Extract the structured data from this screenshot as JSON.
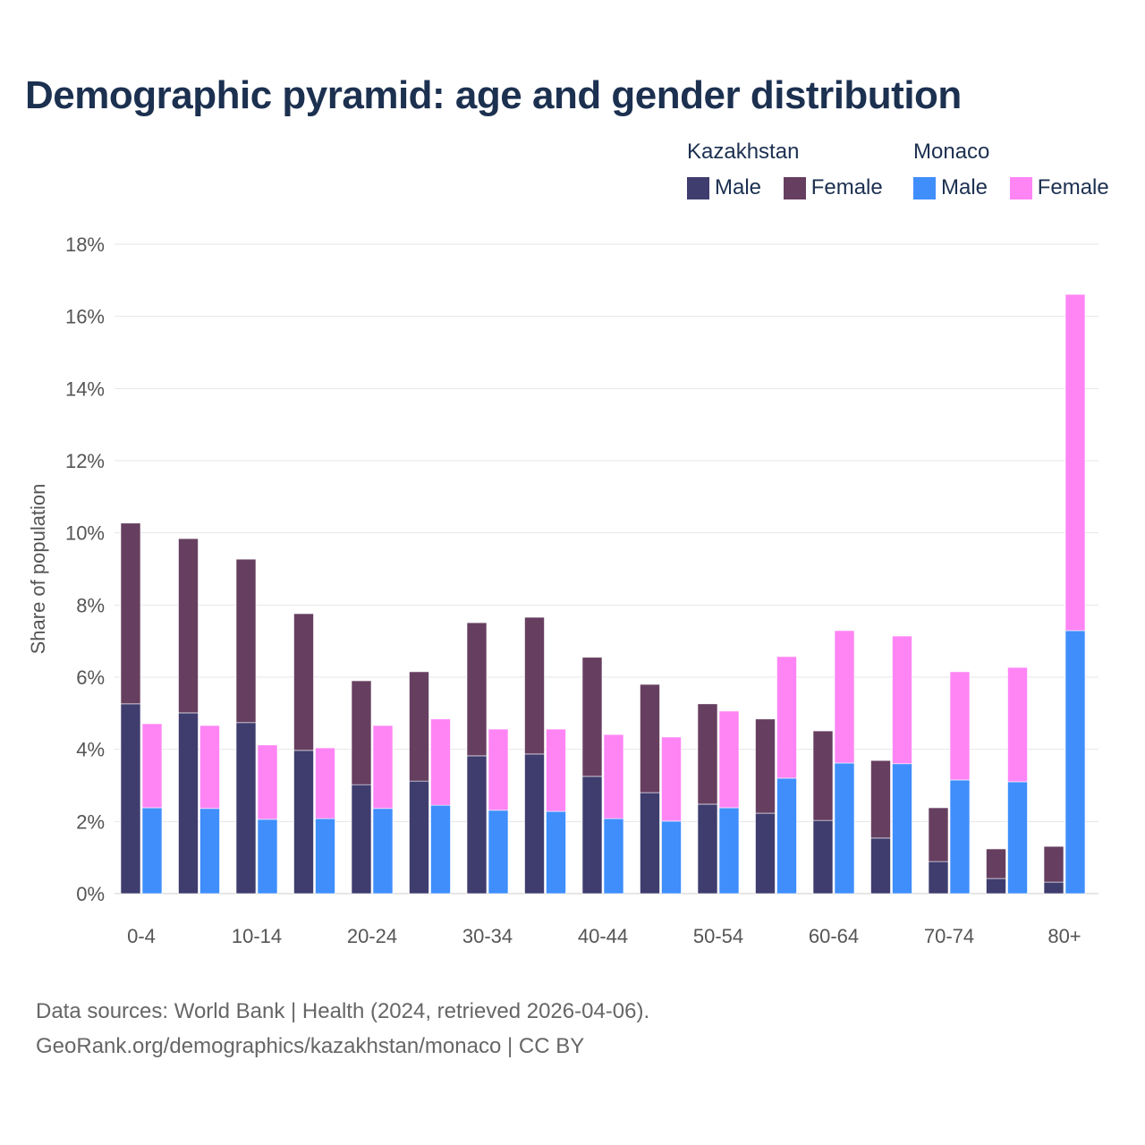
{
  "title": "Demographic pyramid: age and gender distribution",
  "legend": {
    "groups": [
      {
        "title": "Kazakhstan",
        "items": [
          {
            "label": "Male",
            "color": "#3f3d6e"
          },
          {
            "label": "Female",
            "color": "#663f60"
          }
        ]
      },
      {
        "title": "Monaco",
        "items": [
          {
            "label": "Male",
            "color": "#3f8efc"
          },
          {
            "label": "Female",
            "color": "#ff85f5"
          }
        ]
      }
    ]
  },
  "footer": {
    "line1": "Data sources: World Bank | Health (2024, retrieved 2026-04-06).",
    "line2": "GeoRank.org/demographics/kazakhstan/monaco | CC BY"
  },
  "chart_data": {
    "type": "bar",
    "stacked": true,
    "ylabel": "Share of population",
    "ylim": [
      0,
      18
    ],
    "yticks": [
      0,
      2,
      4,
      6,
      8,
      10,
      12,
      14,
      16,
      18
    ],
    "ytick_labels": [
      "0%",
      "2%",
      "4%",
      "6%",
      "8%",
      "10%",
      "12%",
      "14%",
      "16%",
      "18%"
    ],
    "categories": [
      "0-4",
      "5-9",
      "10-14",
      "15-19",
      "20-24",
      "25-29",
      "30-34",
      "35-39",
      "40-44",
      "45-49",
      "50-54",
      "55-59",
      "60-64",
      "65-69",
      "70-74",
      "75-79",
      "80+"
    ],
    "xtick_labels": [
      "0-4",
      "",
      "10-14",
      "",
      "20-24",
      "",
      "30-34",
      "",
      "40-44",
      "",
      "50-54",
      "",
      "60-64",
      "",
      "70-74",
      "",
      "80+"
    ],
    "grid": true,
    "series": [
      {
        "name": "Kazakhstan Male",
        "country": "Kazakhstan",
        "color": "#3f3d6e",
        "values": [
          5.26,
          5.01,
          4.74,
          3.97,
          3.02,
          3.12,
          3.82,
          3.87,
          3.25,
          2.8,
          2.48,
          2.23,
          2.03,
          1.54,
          0.89,
          0.42,
          0.32
        ]
      },
      {
        "name": "Kazakhstan Female",
        "country": "Kazakhstan",
        "color": "#663f60",
        "values": [
          5.01,
          4.83,
          4.53,
          3.79,
          2.88,
          3.03,
          3.69,
          3.79,
          3.3,
          3.0,
          2.78,
          2.61,
          2.48,
          2.15,
          1.49,
          0.82,
          0.99
        ]
      },
      {
        "name": "Monaco Male",
        "country": "Monaco",
        "color": "#3f8efc",
        "values": [
          2.38,
          2.36,
          2.06,
          2.08,
          2.36,
          2.45,
          2.31,
          2.28,
          2.08,
          2.01,
          2.38,
          3.2,
          3.62,
          3.6,
          3.15,
          3.1,
          7.29
        ]
      },
      {
        "name": "Monaco Female",
        "country": "Monaco",
        "color": "#ff85f5",
        "values": [
          2.33,
          2.3,
          2.06,
          1.96,
          2.3,
          2.39,
          2.25,
          2.28,
          2.33,
          2.33,
          2.68,
          3.37,
          3.67,
          3.54,
          3.0,
          3.17,
          9.32
        ]
      }
    ]
  }
}
